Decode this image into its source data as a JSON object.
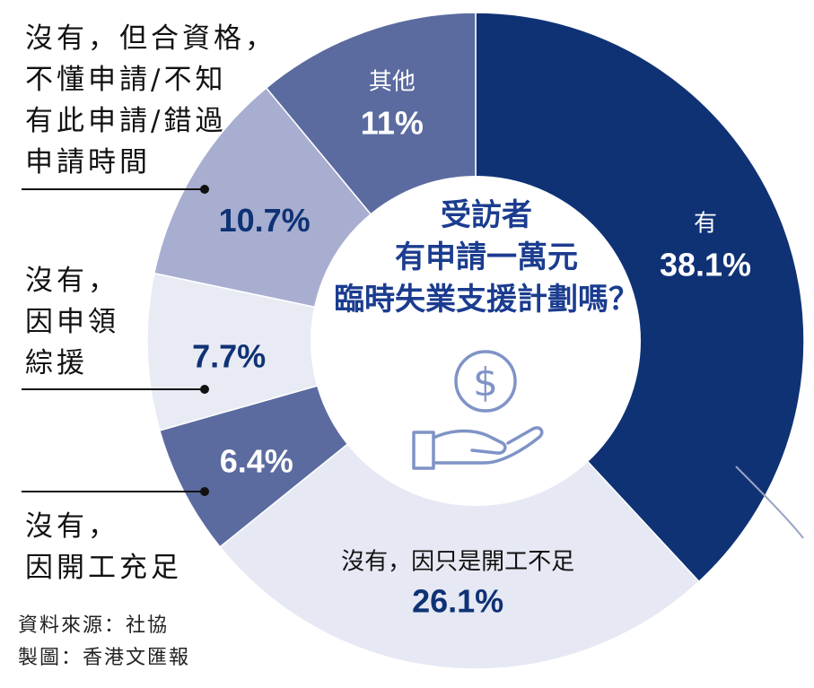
{
  "chart_data": {
    "type": "pie",
    "donut": true,
    "title_lines": [
      "受訪者",
      "有申請一萬元",
      "臨時失業支援計劃嗎？"
    ],
    "slices": [
      {
        "label": "有",
        "value": 38.1,
        "display": "38.1%",
        "color": "#0f3275",
        "text_color": "#ffffff"
      },
      {
        "label": "沒有，因只是開工不足",
        "value": 26.1,
        "display": "26.1%",
        "color": "#e6e9f4",
        "text_color": "#0f3275"
      },
      {
        "label": "沒有，因開工充足",
        "value": 6.4,
        "display": "6.4%",
        "color": "#5b6ba0",
        "text_color": "#ffffff"
      },
      {
        "label": "沒有，因申領綜援",
        "value": 7.7,
        "display": "7.7%",
        "color": "#e9ebf4",
        "text_color": "#0f3275"
      },
      {
        "label": "沒有，但合資格，不懂申請/不知有此申請/錯過申請時間",
        "value": 10.7,
        "display": "10.7%",
        "color": "#a8aed0",
        "text_color": "#0f3275"
      },
      {
        "label": "其他",
        "value": 11,
        "display": "11%",
        "color": "#5b6ba0",
        "text_color": "#ffffff"
      }
    ]
  },
  "external_labels": {
    "not_qualified": "沒有，但合資格，\n不懂申請/不知\n有此申請/錯過\n申請時間",
    "cssa": "沒有，\n因申領\n綜援",
    "enough_work": "沒有，\n因開工充足"
  },
  "source": {
    "data_source": "資料來源：社協",
    "made_by": "製圖：香港文匯報"
  }
}
